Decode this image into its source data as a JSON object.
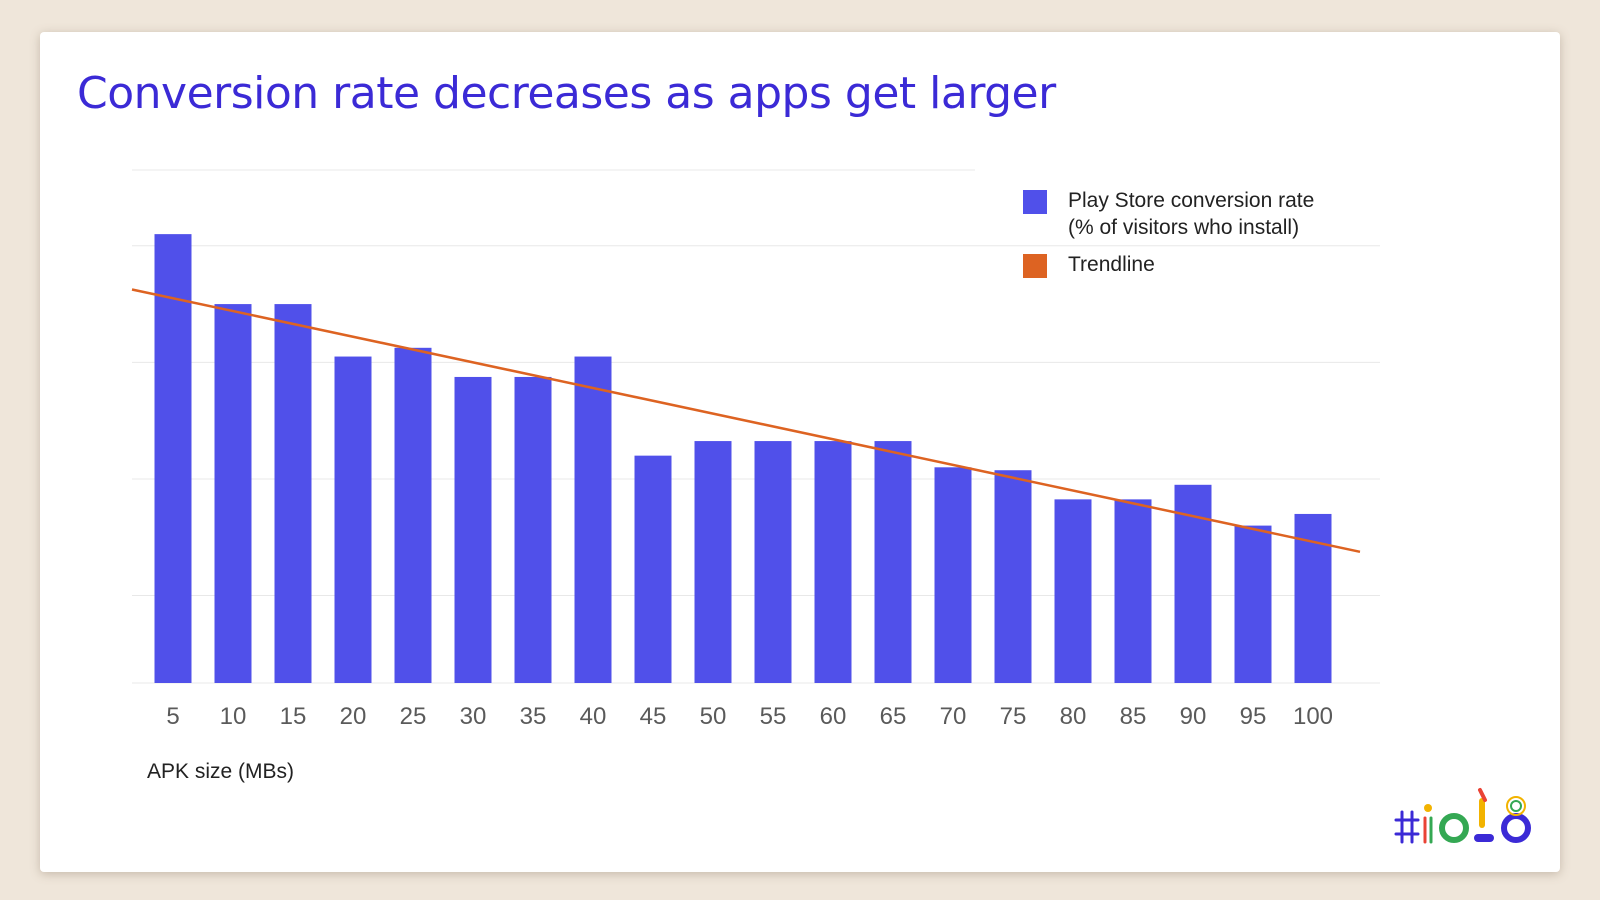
{
  "slide": {
    "title": "Conversion rate decreases as apps get larger"
  },
  "colors": {
    "title": "#3b2ad6",
    "bar": "#5050ea",
    "trendline": "#dd6322",
    "grid": "#e8e8e8"
  },
  "chart_data": {
    "type": "bar",
    "categories": [
      "5",
      "10",
      "15",
      "20",
      "25",
      "30",
      "35",
      "40",
      "45",
      "50",
      "55",
      "60",
      "65",
      "70",
      "75",
      "80",
      "85",
      "90",
      "95",
      "100"
    ],
    "series": [
      {
        "name": "Play Store conversion rate (% of visitors who install)",
        "values": [
          77,
          65,
          65,
          56,
          57.5,
          52.5,
          52.5,
          56,
          39,
          41.5,
          41.5,
          41.5,
          41.5,
          37,
          36.5,
          31.5,
          31.5,
          34,
          27,
          29
        ]
      }
    ],
    "trendline": {
      "name": "Trendline",
      "start": 67.5,
      "end": 22.5
    },
    "legend": {
      "position": "top-right",
      "entries": [
        {
          "label_lines": [
            "Play Store conversion rate",
            "(% of visitors who install)"
          ],
          "icon": "square",
          "color": "#5050ea"
        },
        {
          "label_lines": [
            "Trendline"
          ],
          "icon": "square",
          "color": "#dd6322"
        }
      ]
    },
    "xlabel": "APK size (MBs)",
    "ylabel": "",
    "ylim": [
      0,
      88
    ],
    "gridlines": [
      15,
      35,
      55,
      75,
      88
    ],
    "grid": true
  },
  "logo": {
    "name": "io18-logo",
    "alt": "#io18"
  }
}
